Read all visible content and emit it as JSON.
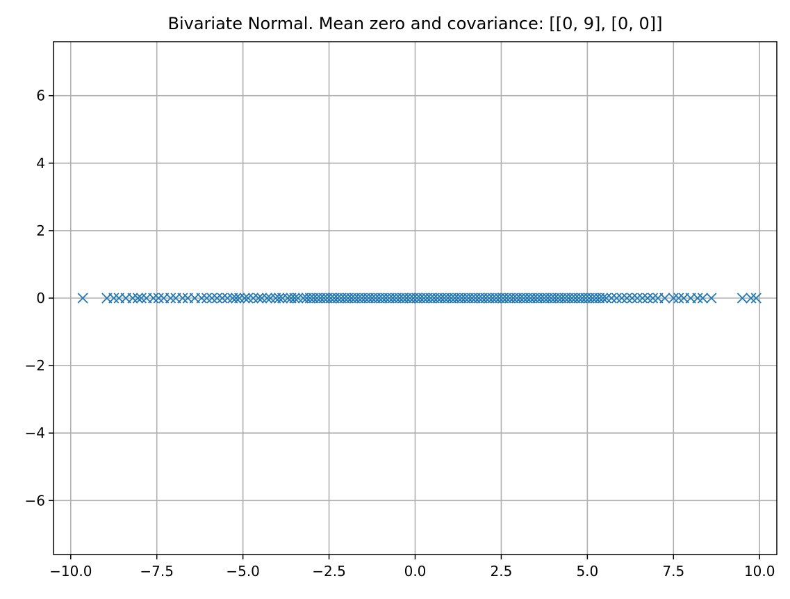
{
  "chart_data": {
    "type": "scatter",
    "title": "Bivariate Normal. Mean zero and covariance: [[0, 9], [0, 0]]",
    "xlabel": "",
    "ylabel": "",
    "xlim": [
      -10.5,
      10.5
    ],
    "ylim": [
      -7.6,
      7.6
    ],
    "x_ticks": [
      -10.0,
      -7.5,
      -5.0,
      -2.5,
      0.0,
      2.5,
      5.0,
      7.5,
      10.0
    ],
    "x_tick_labels": [
      "−10.0",
      "−7.5",
      "−5.0",
      "−2.5",
      "0.0",
      "2.5",
      "5.0",
      "7.5",
      "10.0"
    ],
    "y_ticks": [
      -6,
      -4,
      -2,
      0,
      2,
      4,
      6
    ],
    "y_tick_labels": [
      "−6",
      "−4",
      "−2",
      "0",
      "2",
      "4",
      "6"
    ],
    "grid": true,
    "legend": "none",
    "marker": "x",
    "series": [
      {
        "color": "#1f77b4",
        "x": [
          -9.65,
          -8.95,
          -8.75,
          -8.6,
          -8.4,
          -8.2,
          -8.05,
          -7.95,
          -7.8,
          -7.6,
          -7.45,
          -7.3,
          -7.1,
          -6.95,
          -6.75,
          -6.6,
          -6.4,
          -6.2,
          -6.05,
          -5.9,
          -5.75,
          -5.6,
          -5.45,
          -5.3,
          -5.2,
          -5.1,
          -4.95,
          -4.85,
          -4.7,
          -4.55,
          -4.45,
          -4.3,
          -4.2,
          -4.05,
          -3.95,
          -3.85,
          -3.7,
          -3.6,
          -3.5,
          -3.4,
          -3.25,
          -3.15,
          -3.05,
          -2.95,
          -2.85,
          -2.75,
          -2.65,
          -2.55,
          -2.45,
          -2.35,
          -2.25,
          -2.15,
          -2.05,
          -1.95,
          -1.85,
          -1.75,
          -1.65,
          -1.55,
          -1.45,
          -1.35,
          -1.25,
          -1.15,
          -1.05,
          -0.95,
          -0.85,
          -0.75,
          -0.65,
          -0.55,
          -0.45,
          -0.35,
          -0.25,
          -0.15,
          -0.05,
          0.05,
          0.15,
          0.25,
          0.35,
          0.45,
          0.55,
          0.65,
          0.75,
          0.85,
          0.95,
          1.05,
          1.15,
          1.25,
          1.35,
          1.45,
          1.55,
          1.65,
          1.75,
          1.85,
          1.95,
          2.05,
          2.15,
          2.25,
          2.35,
          2.45,
          2.55,
          2.65,
          2.75,
          2.85,
          2.95,
          3.05,
          3.15,
          3.25,
          3.35,
          3.45,
          3.55,
          3.65,
          3.75,
          3.85,
          3.95,
          4.05,
          4.15,
          4.25,
          4.35,
          4.45,
          4.55,
          4.65,
          4.75,
          4.85,
          4.95,
          5.05,
          5.15,
          5.25,
          5.35,
          5.45,
          5.55,
          5.7,
          5.85,
          6.0,
          6.15,
          6.3,
          6.45,
          6.6,
          6.75,
          6.9,
          7.05,
          7.25,
          7.5,
          7.65,
          7.8,
          8.0,
          8.2,
          8.35,
          8.6,
          9.5,
          9.75,
          9.9
        ],
        "y": [
          0,
          0,
          0,
          0,
          0,
          0,
          0,
          0,
          0,
          0,
          0,
          0,
          0,
          0,
          0,
          0,
          0,
          0,
          0,
          0,
          0,
          0,
          0,
          0,
          0,
          0,
          0,
          0,
          0,
          0,
          0,
          0,
          0,
          0,
          0,
          0,
          0,
          0,
          0,
          0,
          0,
          0,
          0,
          0,
          0,
          0,
          0,
          0,
          0,
          0,
          0,
          0,
          0,
          0,
          0,
          0,
          0,
          0,
          0,
          0,
          0,
          0,
          0,
          0,
          0,
          0,
          0,
          0,
          0,
          0,
          0,
          0,
          0,
          0,
          0,
          0,
          0,
          0,
          0,
          0,
          0,
          0,
          0,
          0,
          0,
          0,
          0,
          0,
          0,
          0,
          0,
          0,
          0,
          0,
          0,
          0,
          0,
          0,
          0,
          0,
          0,
          0,
          0,
          0,
          0,
          0,
          0,
          0,
          0,
          0,
          0,
          0,
          0,
          0,
          0,
          0,
          0,
          0,
          0,
          0,
          0,
          0,
          0,
          0,
          0,
          0,
          0,
          0,
          0,
          0,
          0,
          0,
          0,
          0,
          0,
          0,
          0,
          0,
          0,
          0,
          0,
          0,
          0,
          0,
          0,
          0,
          0,
          0,
          0,
          0
        ]
      }
    ]
  }
}
